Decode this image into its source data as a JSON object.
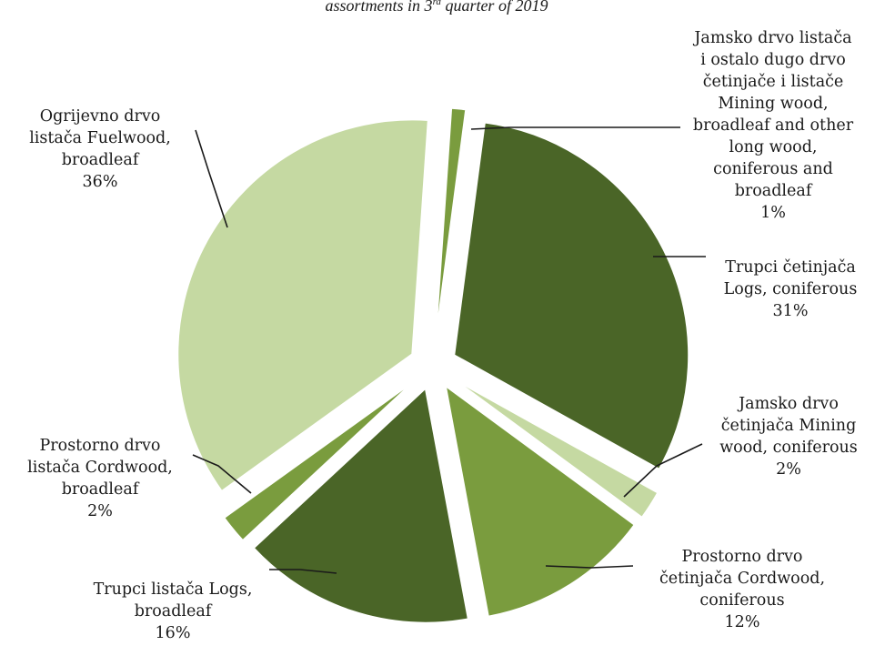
{
  "chart_data": {
    "type": "pie",
    "title_pre": "assortments in 3",
    "title_sup": "rd",
    "title_post": " quarter of 2019",
    "slices": [
      {
        "label": "Jamsko drvo listača\ni ostalo dugo drvo\nčetinjače i listače\nMining wood,\nbroadleaf and other\nlong wood,\nconiferous and\nbroadleaf",
        "value": 1,
        "pct": "1%",
        "color": "#7a9c3e"
      },
      {
        "label": "Trupci četinjača\nLogs, coniferous",
        "value": 31,
        "pct": "31%",
        "color": "#4a6527"
      },
      {
        "label": "Jamsko drvo\nčetinjača Mining\nwood, coniferous",
        "value": 2,
        "pct": "2%",
        "color": "#c5d9a2"
      },
      {
        "label": "Prostorno drvo\nčetinjača Cordwood,\nconiferous",
        "value": 12,
        "pct": "12%",
        "color": "#7a9c3e"
      },
      {
        "label": "Trupci listača Logs,\nbroadleaf",
        "value": 16,
        "pct": "16%",
        "color": "#4a6527"
      },
      {
        "label": "Prostorno drvo\nlistača Cordwood,\nbroadleaf",
        "value": 2,
        "pct": "2%",
        "color": "#7a9c3e"
      },
      {
        "label": "Ogrijevno drvo\nlistača  Fuelwood,\nbroadleaf",
        "value": 36,
        "pct": "36%",
        "color": "#c5d9a2"
      }
    ]
  }
}
